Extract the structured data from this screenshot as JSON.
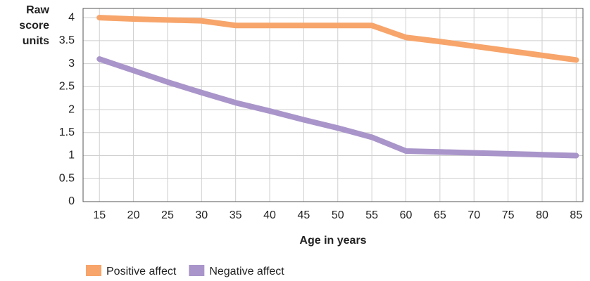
{
  "chart_data": {
    "type": "line",
    "x_label": "Age in years",
    "y_label": "Raw score units",
    "x": [
      15,
      20,
      25,
      30,
      35,
      40,
      45,
      50,
      55,
      60,
      65,
      70,
      75,
      80,
      85
    ],
    "xlim": [
      12.6,
      86
    ],
    "xticks": [
      15,
      20,
      25,
      30,
      35,
      40,
      45,
      50,
      55,
      60,
      65,
      70,
      75,
      80,
      85
    ],
    "ylim": [
      0,
      4.2
    ],
    "yticks": [
      0,
      0.5,
      1,
      1.5,
      2,
      2.5,
      3,
      3.5,
      4
    ],
    "grid": true,
    "legend": "bottom-left",
    "series": [
      {
        "name": "Positive affect",
        "color": "#f7a56b",
        "values": [
          4.0,
          3.97,
          3.95,
          3.93,
          3.83,
          3.83,
          3.83,
          3.83,
          3.83,
          3.57,
          3.48,
          3.38,
          3.28,
          3.18,
          3.08
        ]
      },
      {
        "name": "Negative affect",
        "color": "#a995c9",
        "values": [
          3.1,
          2.85,
          2.6,
          2.37,
          2.15,
          1.97,
          1.78,
          1.6,
          1.4,
          1.1,
          1.08,
          1.06,
          1.04,
          1.02,
          1.0
        ]
      }
    ]
  }
}
